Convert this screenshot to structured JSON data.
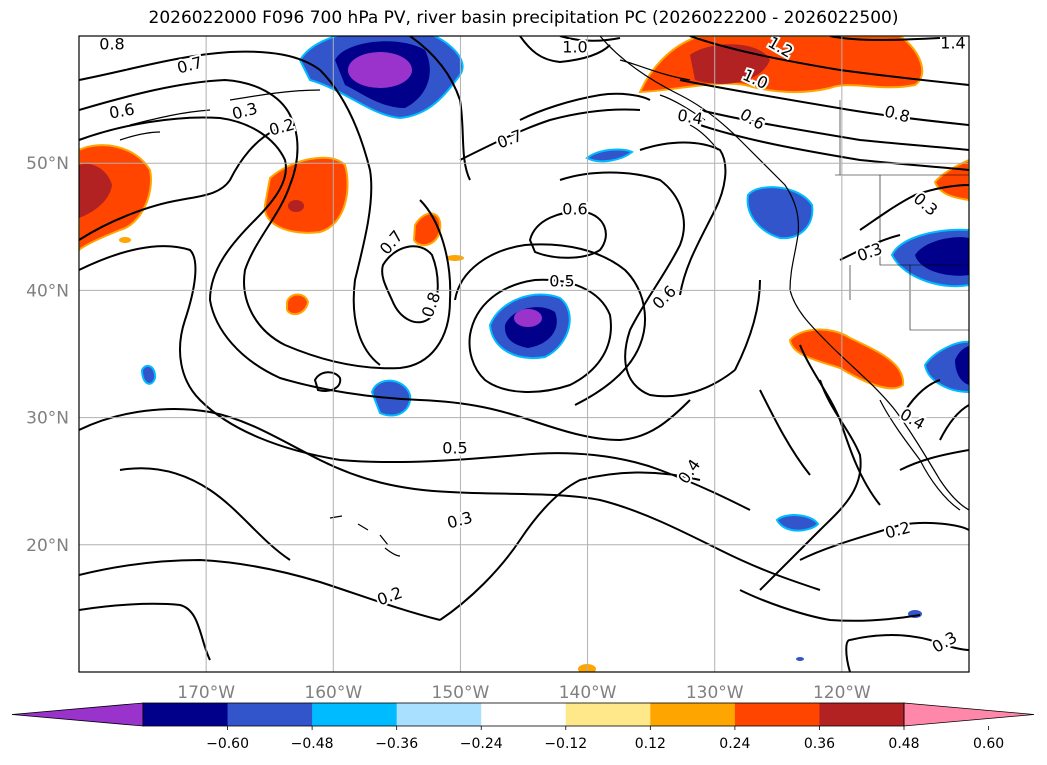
{
  "title": "2026022000 F096 700 hPa PV, river basin precipitation PC (2026022200 - 2026022500)",
  "map": {
    "lon_range": [
      -180,
      -110
    ],
    "lat_range": [
      10,
      60
    ],
    "lon_ticks": [
      {
        "value": -170,
        "label": "170°W"
      },
      {
        "value": -160,
        "label": "160°W"
      },
      {
        "value": -150,
        "label": "150°W"
      },
      {
        "value": -140,
        "label": "140°W"
      },
      {
        "value": -130,
        "label": "130°W"
      },
      {
        "value": -120,
        "label": "120°W"
      }
    ],
    "lat_ticks": [
      {
        "value": 20,
        "label": "20°N"
      },
      {
        "value": 30,
        "label": "30°N"
      },
      {
        "value": 40,
        "label": "40°N"
      },
      {
        "value": 50,
        "label": "50°N"
      }
    ],
    "contour_labels": [
      "0.8",
      "0.7",
      "0.6",
      "0.3",
      "0.2",
      "0.7",
      "0.8",
      "0.6",
      "0.5",
      "0.5",
      "0.3",
      "0.2",
      "0.4",
      "0.6",
      "0.7",
      "1.0",
      "1.0",
      "1.2",
      "1.4",
      "0.6",
      "0.8",
      "0.3",
      "0.3",
      "0.4",
      "0.2",
      "0.3",
      "0.4"
    ],
    "colorbar": {
      "colors": [
        "#9933cc",
        "#00008b",
        "#3355cc",
        "#00bbff",
        "#aae0ff",
        "#ffffff",
        "#ffe88a",
        "#ffa500",
        "#ff4500",
        "#b22222",
        "#ff88aa"
      ],
      "tick_labels": [
        "−0.60",
        "−0.48",
        "−0.36",
        "−0.24",
        "−0.12",
        "0.12",
        "0.24",
        "0.36",
        "0.48",
        "0.60"
      ]
    }
  }
}
